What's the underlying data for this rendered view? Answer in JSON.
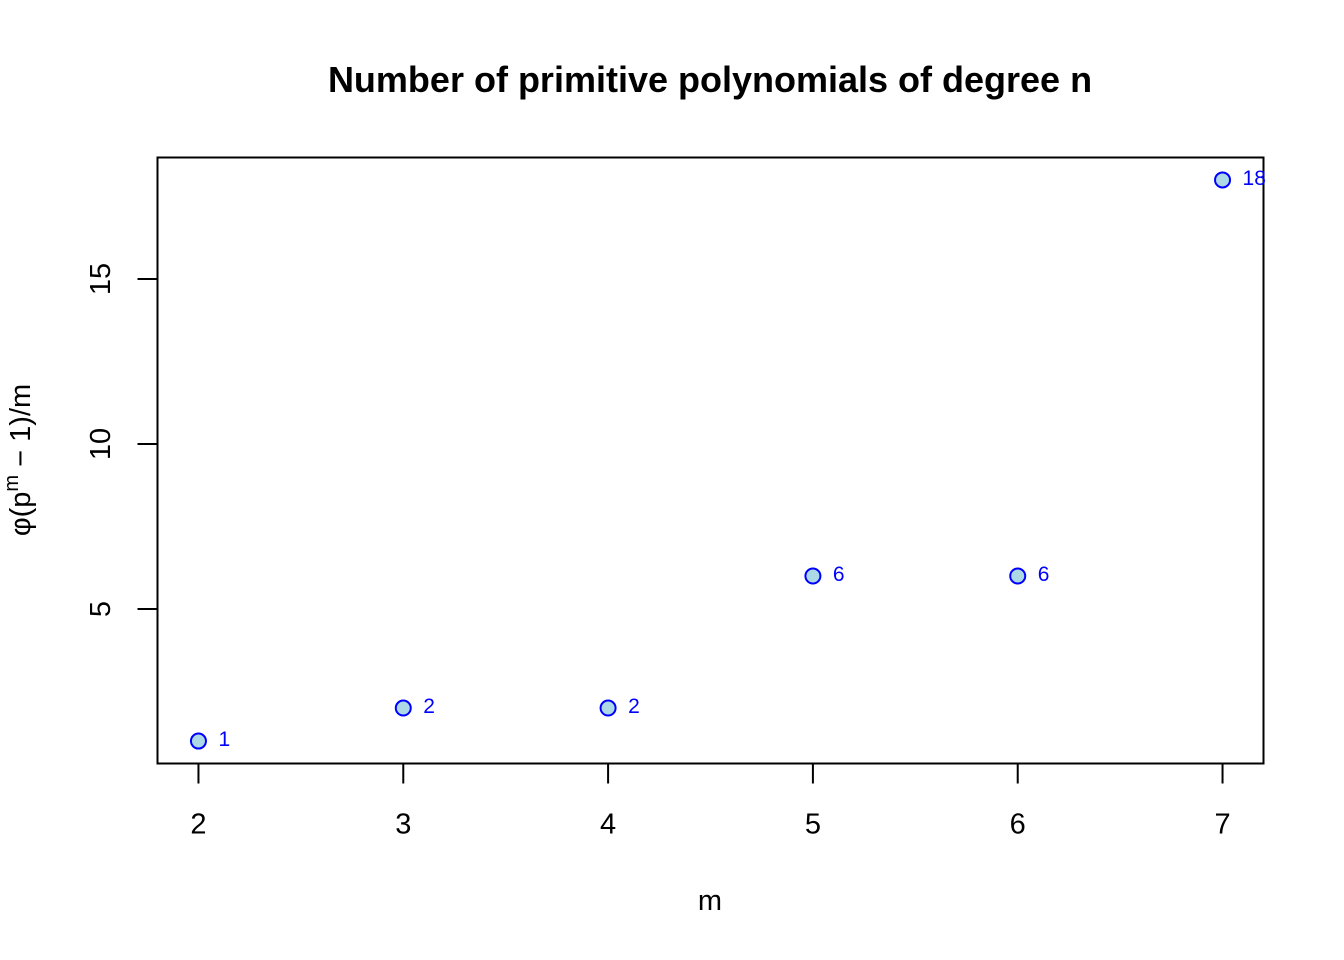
{
  "chart_data": {
    "type": "scatter",
    "title": "Number of primitive polynomials of degree n",
    "xlabel": "m",
    "ylabel": {
      "prefix": "φ(p",
      "superscript": "m",
      "suffix": " − 1)/m"
    },
    "x": [
      2,
      3,
      4,
      5,
      6,
      7
    ],
    "y": [
      1,
      2,
      2,
      6,
      6,
      18
    ],
    "point_labels": [
      "1",
      "2",
      "2",
      "6",
      "6",
      "18"
    ],
    "x_ticks": [
      2,
      3,
      4,
      5,
      6,
      7
    ],
    "x_tick_labels": [
      "2",
      "3",
      "4",
      "5",
      "6",
      "7"
    ],
    "y_ticks": [
      5,
      10,
      15
    ],
    "y_tick_labels": [
      "5",
      "10",
      "15"
    ],
    "xlim": [
      1.8,
      7.2
    ],
    "ylim": [
      0.32,
      18.68
    ],
    "grid": false,
    "marker_fill": "#add8e6",
    "marker_stroke": "#0000ff",
    "label_color": "#0000ff"
  }
}
